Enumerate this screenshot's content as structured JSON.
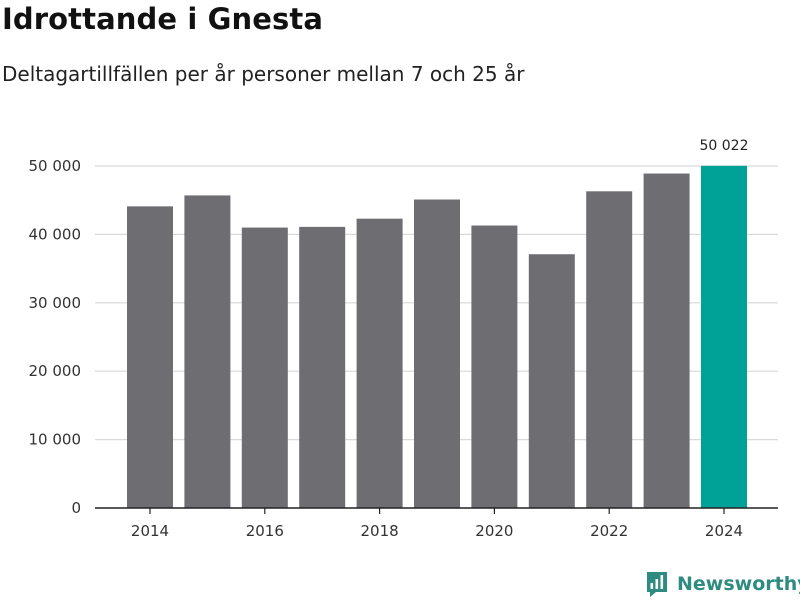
{
  "header": {
    "title": "Idrottande i Gnesta",
    "subtitle": "Deltagartillfällen per år personer mellan 7 och 25 år"
  },
  "brand": {
    "name": "Newsworthy",
    "icon": "newsworthy-logo-icon"
  },
  "colors": {
    "bar": "#6e6d72",
    "highlight": "#00a298",
    "grid": "#d9d9d9",
    "axis": "#222222",
    "brand": "#2e8b80"
  },
  "chart_data": {
    "type": "bar",
    "title": "Idrottande i Gnesta",
    "subtitle": "Deltagartillfällen per år personer mellan 7 och 25 år",
    "categories": [
      "2014",
      "2015",
      "2016",
      "2017",
      "2018",
      "2019",
      "2020",
      "2021",
      "2022",
      "2023",
      "2024"
    ],
    "values": [
      44100,
      45700,
      41000,
      41100,
      42300,
      45100,
      41300,
      37100,
      46300,
      48900,
      50022
    ],
    "x_tick_labels": [
      "2014",
      "2016",
      "2018",
      "2020",
      "2022",
      "2024"
    ],
    "y_ticks": [
      0,
      10000,
      20000,
      30000,
      40000,
      50000
    ],
    "y_tick_labels": [
      "0",
      "10 000",
      "20 000",
      "30 000",
      "40 000",
      "50 000"
    ],
    "ylim": [
      0,
      50000
    ],
    "highlight_index": 10,
    "annotations": [
      {
        "category": "2024",
        "text": "50 022"
      }
    ],
    "grid": true,
    "legend": "none"
  }
}
